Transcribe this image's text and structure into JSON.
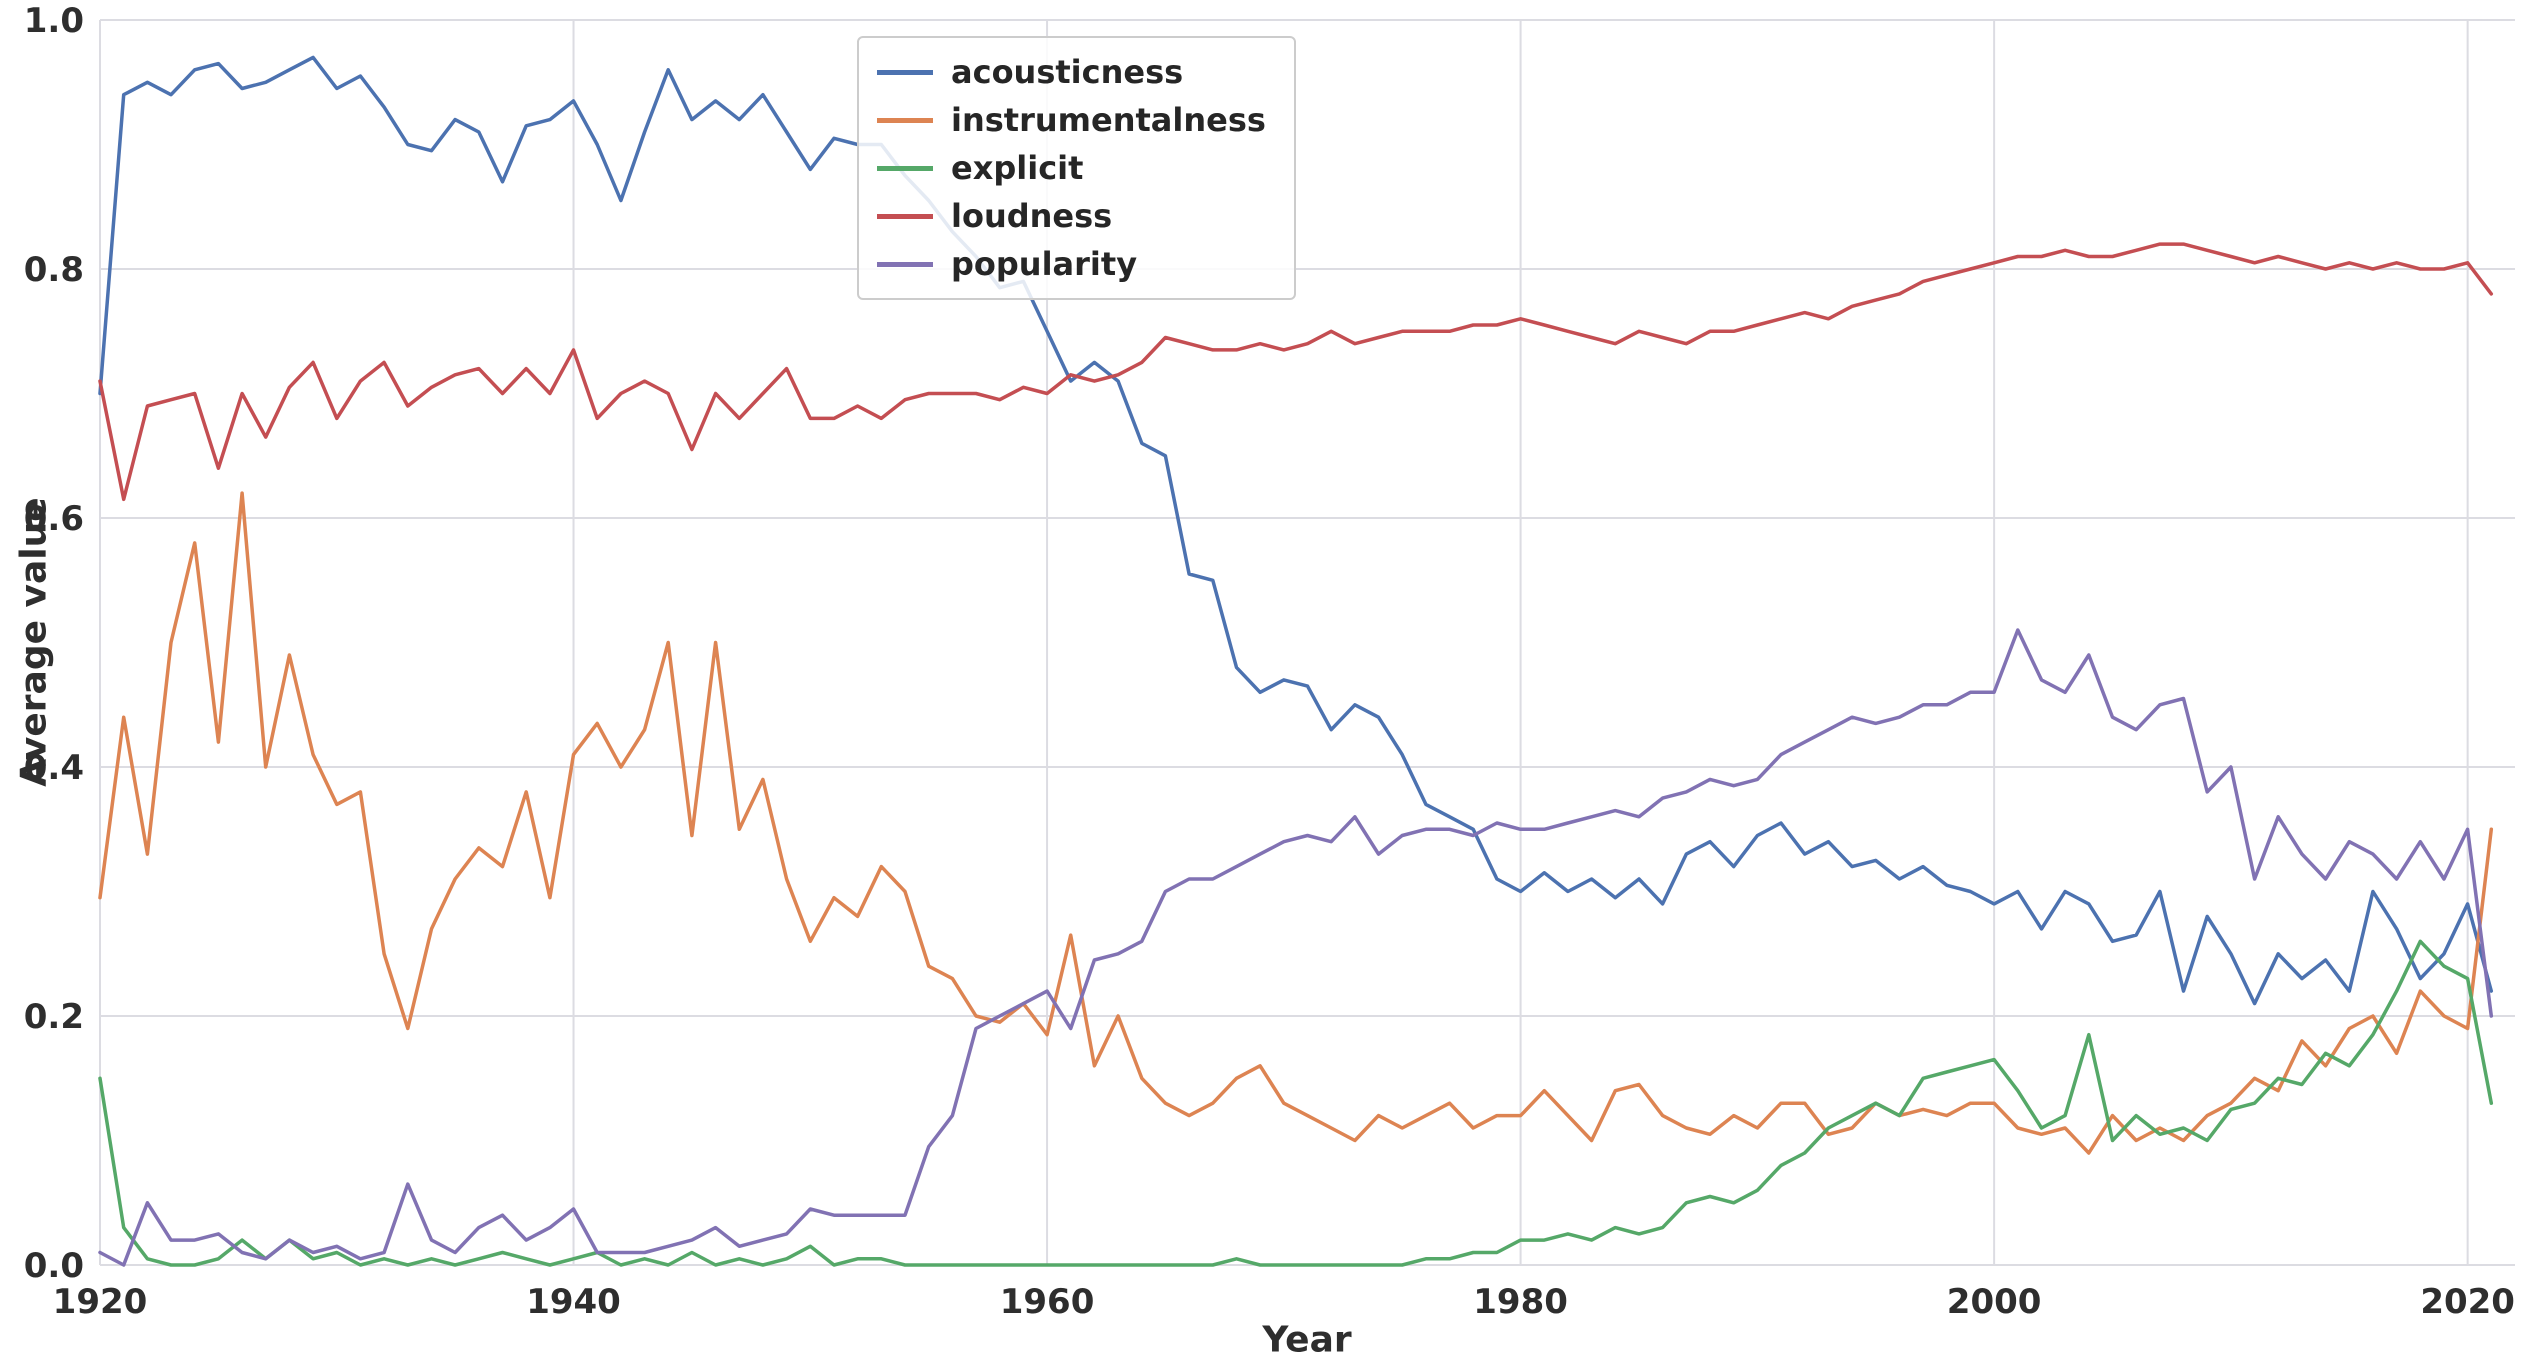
{
  "chart_data": {
    "type": "line",
    "title": "",
    "xlabel": "Year",
    "ylabel": "Average value",
    "xlim": [
      1920,
      2022
    ],
    "ylim": [
      0,
      1
    ],
    "grid": true,
    "legend_position": "upper center-left",
    "x_ticks": [
      1920,
      1940,
      1960,
      1980,
      2000,
      2020
    ],
    "x_tick_labels": [
      "1920",
      "1940",
      "1960",
      "1980",
      "2000",
      "2020"
    ],
    "y_ticks": [
      0.0,
      0.2,
      0.4,
      0.6,
      0.8,
      1.0
    ],
    "y_tick_labels": [
      "0.0",
      "0.2",
      "0.4",
      "0.6",
      "0.8",
      "1.0"
    ],
    "x": [
      1920,
      1921,
      1922,
      1923,
      1924,
      1925,
      1926,
      1927,
      1928,
      1929,
      1930,
      1931,
      1932,
      1933,
      1934,
      1935,
      1936,
      1937,
      1938,
      1939,
      1940,
      1941,
      1942,
      1943,
      1944,
      1945,
      1946,
      1947,
      1948,
      1949,
      1950,
      1951,
      1952,
      1953,
      1954,
      1955,
      1956,
      1957,
      1958,
      1959,
      1960,
      1961,
      1962,
      1963,
      1964,
      1965,
      1966,
      1967,
      1968,
      1969,
      1970,
      1971,
      1972,
      1973,
      1974,
      1975,
      1976,
      1977,
      1978,
      1979,
      1980,
      1981,
      1982,
      1983,
      1984,
      1985,
      1986,
      1987,
      1988,
      1989,
      1990,
      1991,
      1992,
      1993,
      1994,
      1995,
      1996,
      1997,
      1998,
      1999,
      2000,
      2001,
      2002,
      2003,
      2004,
      2005,
      2006,
      2007,
      2008,
      2009,
      2010,
      2011,
      2012,
      2013,
      2014,
      2015,
      2016,
      2017,
      2018,
      2019,
      2020,
      2021
    ],
    "series": [
      {
        "name": "acousticness",
        "color": "#4C72B0",
        "values": [
          0.7,
          0.94,
          0.95,
          0.94,
          0.96,
          0.965,
          0.945,
          0.95,
          0.96,
          0.97,
          0.945,
          0.955,
          0.93,
          0.9,
          0.895,
          0.92,
          0.91,
          0.87,
          0.915,
          0.92,
          0.935,
          0.9,
          0.855,
          0.91,
          0.96,
          0.92,
          0.935,
          0.92,
          0.94,
          0.91,
          0.88,
          0.905,
          0.9,
          0.9,
          0.875,
          0.855,
          0.83,
          0.81,
          0.785,
          0.79,
          0.75,
          0.71,
          0.725,
          0.71,
          0.66,
          0.65,
          0.555,
          0.55,
          0.48,
          0.46,
          0.47,
          0.465,
          0.43,
          0.45,
          0.44,
          0.41,
          0.37,
          0.36,
          0.35,
          0.31,
          0.3,
          0.315,
          0.3,
          0.31,
          0.295,
          0.31,
          0.29,
          0.33,
          0.34,
          0.32,
          0.345,
          0.355,
          0.33,
          0.34,
          0.32,
          0.325,
          0.31,
          0.32,
          0.305,
          0.3,
          0.29,
          0.3,
          0.27,
          0.3,
          0.29,
          0.26,
          0.265,
          0.3,
          0.22,
          0.28,
          0.25,
          0.21,
          0.25,
          0.23,
          0.245,
          0.22,
          0.3,
          0.27,
          0.23,
          0.25,
          0.29,
          0.22
        ]
      },
      {
        "name": "instrumentalness",
        "color": "#DD8452",
        "values": [
          0.295,
          0.44,
          0.33,
          0.5,
          0.58,
          0.42,
          0.62,
          0.4,
          0.49,
          0.41,
          0.37,
          0.38,
          0.25,
          0.19,
          0.27,
          0.31,
          0.335,
          0.32,
          0.38,
          0.295,
          0.41,
          0.435,
          0.4,
          0.43,
          0.5,
          0.345,
          0.5,
          0.35,
          0.39,
          0.31,
          0.26,
          0.295,
          0.28,
          0.32,
          0.3,
          0.24,
          0.23,
          0.2,
          0.195,
          0.21,
          0.185,
          0.265,
          0.16,
          0.2,
          0.15,
          0.13,
          0.12,
          0.13,
          0.15,
          0.16,
          0.13,
          0.12,
          0.11,
          0.1,
          0.12,
          0.11,
          0.12,
          0.13,
          0.11,
          0.12,
          0.12,
          0.14,
          0.12,
          0.1,
          0.14,
          0.145,
          0.12,
          0.11,
          0.105,
          0.12,
          0.11,
          0.13,
          0.13,
          0.105,
          0.11,
          0.13,
          0.12,
          0.125,
          0.12,
          0.13,
          0.13,
          0.11,
          0.105,
          0.11,
          0.09,
          0.12,
          0.1,
          0.11,
          0.1,
          0.12,
          0.13,
          0.15,
          0.14,
          0.18,
          0.16,
          0.19,
          0.2,
          0.17,
          0.22,
          0.2,
          0.19,
          0.35
        ]
      },
      {
        "name": "explicit",
        "color": "#55A868",
        "values": [
          0.15,
          0.03,
          0.005,
          0.0,
          0.0,
          0.005,
          0.02,
          0.005,
          0.02,
          0.005,
          0.01,
          0.0,
          0.005,
          0.0,
          0.005,
          0.0,
          0.005,
          0.01,
          0.005,
          0.0,
          0.005,
          0.01,
          0.0,
          0.005,
          0.0,
          0.01,
          0.0,
          0.005,
          0.0,
          0.005,
          0.015,
          0.0,
          0.005,
          0.005,
          0.0,
          0.0,
          0.0,
          0.0,
          0.0,
          0.0,
          0.0,
          0.0,
          0.0,
          0.0,
          0.0,
          0.0,
          0.0,
          0.0,
          0.005,
          0.0,
          0.0,
          0.0,
          0.0,
          0.0,
          0.0,
          0.0,
          0.005,
          0.005,
          0.01,
          0.01,
          0.02,
          0.02,
          0.025,
          0.02,
          0.03,
          0.025,
          0.03,
          0.05,
          0.055,
          0.05,
          0.06,
          0.08,
          0.09,
          0.11,
          0.12,
          0.13,
          0.12,
          0.15,
          0.155,
          0.16,
          0.165,
          0.14,
          0.11,
          0.12,
          0.185,
          0.1,
          0.12,
          0.105,
          0.11,
          0.1,
          0.125,
          0.13,
          0.15,
          0.145,
          0.17,
          0.16,
          0.185,
          0.22,
          0.26,
          0.24,
          0.23,
          0.13
        ]
      },
      {
        "name": "loudness",
        "color": "#C44E52",
        "values": [
          0.71,
          0.615,
          0.69,
          0.695,
          0.7,
          0.64,
          0.7,
          0.665,
          0.705,
          0.725,
          0.68,
          0.71,
          0.725,
          0.69,
          0.705,
          0.715,
          0.72,
          0.7,
          0.72,
          0.7,
          0.735,
          0.68,
          0.7,
          0.71,
          0.7,
          0.655,
          0.7,
          0.68,
          0.7,
          0.72,
          0.68,
          0.68,
          0.69,
          0.68,
          0.695,
          0.7,
          0.7,
          0.7,
          0.695,
          0.705,
          0.7,
          0.715,
          0.71,
          0.715,
          0.725,
          0.745,
          0.74,
          0.735,
          0.735,
          0.74,
          0.735,
          0.74,
          0.75,
          0.74,
          0.745,
          0.75,
          0.75,
          0.75,
          0.755,
          0.755,
          0.76,
          0.755,
          0.75,
          0.745,
          0.74,
          0.75,
          0.745,
          0.74,
          0.75,
          0.75,
          0.755,
          0.76,
          0.765,
          0.76,
          0.77,
          0.775,
          0.78,
          0.79,
          0.795,
          0.8,
          0.805,
          0.81,
          0.81,
          0.815,
          0.81,
          0.81,
          0.815,
          0.82,
          0.82,
          0.815,
          0.81,
          0.805,
          0.81,
          0.805,
          0.8,
          0.805,
          0.8,
          0.805,
          0.8,
          0.8,
          0.805,
          0.78
        ]
      },
      {
        "name": "popularity",
        "color": "#8172B3",
        "values": [
          0.01,
          0.0,
          0.05,
          0.02,
          0.02,
          0.025,
          0.01,
          0.005,
          0.02,
          0.01,
          0.015,
          0.005,
          0.01,
          0.065,
          0.02,
          0.01,
          0.03,
          0.04,
          0.02,
          0.03,
          0.045,
          0.01,
          0.01,
          0.01,
          0.015,
          0.02,
          0.03,
          0.015,
          0.02,
          0.025,
          0.045,
          0.04,
          0.04,
          0.04,
          0.04,
          0.095,
          0.12,
          0.19,
          0.2,
          0.21,
          0.22,
          0.19,
          0.245,
          0.25,
          0.26,
          0.3,
          0.31,
          0.31,
          0.32,
          0.33,
          0.34,
          0.345,
          0.34,
          0.36,
          0.33,
          0.345,
          0.35,
          0.35,
          0.345,
          0.355,
          0.35,
          0.35,
          0.355,
          0.36,
          0.365,
          0.36,
          0.375,
          0.38,
          0.39,
          0.385,
          0.39,
          0.41,
          0.42,
          0.43,
          0.44,
          0.435,
          0.44,
          0.45,
          0.45,
          0.46,
          0.46,
          0.51,
          0.47,
          0.46,
          0.49,
          0.44,
          0.43,
          0.45,
          0.455,
          0.38,
          0.4,
          0.31,
          0.36,
          0.33,
          0.31,
          0.34,
          0.33,
          0.31,
          0.34,
          0.31,
          0.35,
          0.2
        ]
      }
    ],
    "style": {
      "background": "#ffffff",
      "grid_color": "#dcdce2",
      "tick_color": "#2e2e2e",
      "label_color": "#2e2e2e",
      "legend_border": "#cccccc",
      "line_width": 3.5
    }
  }
}
